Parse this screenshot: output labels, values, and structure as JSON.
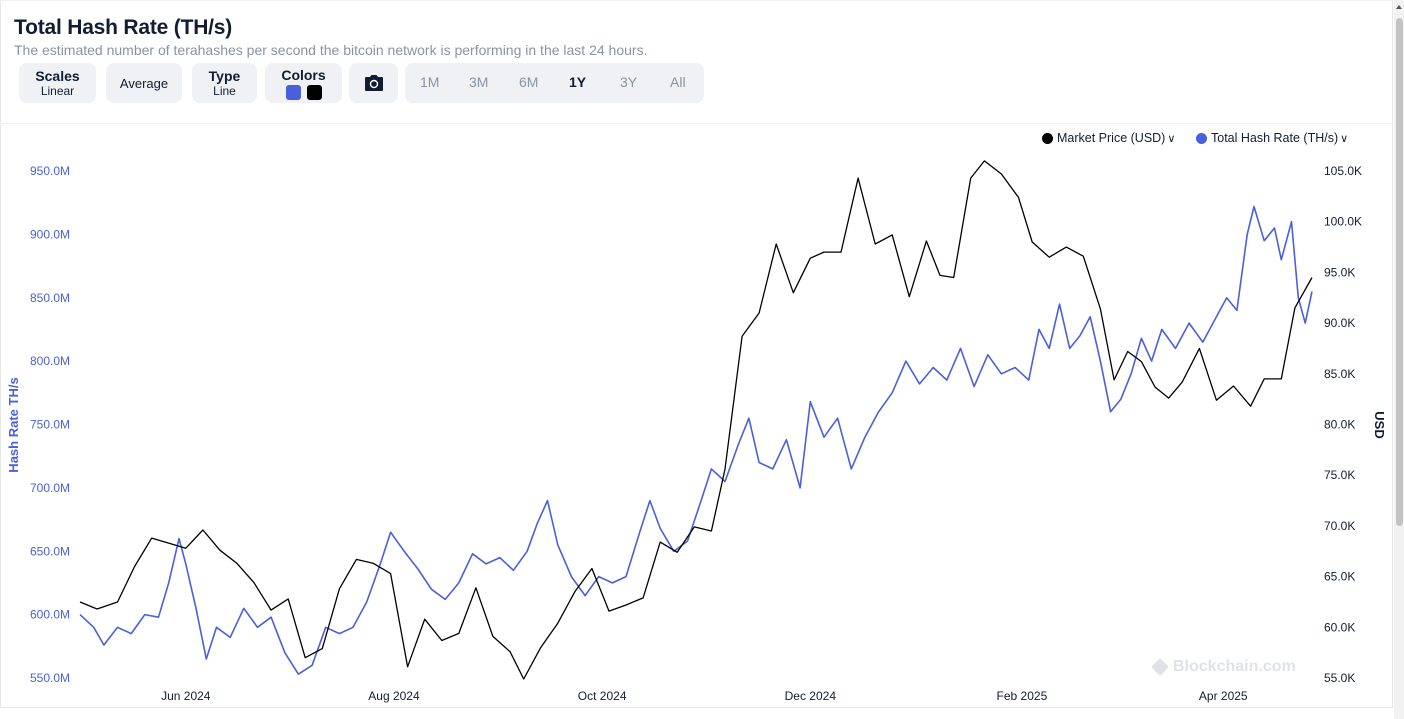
{
  "header": {
    "title": "Total Hash Rate (TH/s)",
    "subtitle": "The estimated number of terahashes per second the bitcoin network is performing in the last 24 hours."
  },
  "toolbar": {
    "scales": {
      "label": "Scales",
      "value": "Linear"
    },
    "average": {
      "label": "Average"
    },
    "type": {
      "label": "Type",
      "value": "Line"
    },
    "colors": {
      "label": "Colors",
      "swatch1": "#4a5fdc",
      "swatch2": "#000000"
    },
    "camera_icon": "camera-icon",
    "ranges": [
      "1M",
      "3M",
      "6M",
      "1Y",
      "3Y",
      "All"
    ],
    "active_range": "1Y"
  },
  "legend": {
    "market_price": {
      "label": "Market Price (USD)",
      "color": "#000000"
    },
    "hash_rate": {
      "label": "Total Hash Rate (TH/s)",
      "color": "#4a5fdc"
    }
  },
  "watermark": "Blockchain.com",
  "chart_data": {
    "type": "line",
    "x_range": [
      "2024-05-01",
      "2025-04-27"
    ],
    "x_ticks": [
      {
        "label": "Jun 2024",
        "date": "2024-06-01"
      },
      {
        "label": "Aug 2024",
        "date": "2024-08-01"
      },
      {
        "label": "Oct 2024",
        "date": "2024-10-01"
      },
      {
        "label": "Dec 2024",
        "date": "2024-12-01"
      },
      {
        "label": "Feb 2025",
        "date": "2025-02-01"
      },
      {
        "label": "Apr 2025",
        "date": "2025-04-01"
      }
    ],
    "y_left": {
      "label": "Hash Rate TH/s",
      "range": [
        550000000,
        950000000
      ],
      "ticks": [
        "550.0M",
        "600.0M",
        "650.0M",
        "700.0M",
        "750.0M",
        "800.0M",
        "850.0M",
        "900.0M",
        "950.0M"
      ]
    },
    "y_right": {
      "label": "USD",
      "range": [
        55000,
        105000
      ],
      "ticks": [
        "55.0K",
        "60.0K",
        "65.0K",
        "70.0K",
        "75.0K",
        "80.0K",
        "85.0K",
        "90.0K",
        "95.0K",
        "100.0K",
        "105.0K"
      ]
    },
    "series": [
      {
        "name": "Total Hash Rate (TH/s)",
        "axis": "left",
        "color": "#4a5fdc",
        "points": [
          [
            "2024-05-01",
            600000000
          ],
          [
            "2024-05-05",
            590000000
          ],
          [
            "2024-05-08",
            576000000
          ],
          [
            "2024-05-12",
            590000000
          ],
          [
            "2024-05-16",
            585000000
          ],
          [
            "2024-05-20",
            600000000
          ],
          [
            "2024-05-24",
            598000000
          ],
          [
            "2024-05-27",
            625000000
          ],
          [
            "2024-05-30",
            660000000
          ],
          [
            "2024-06-01",
            640000000
          ],
          [
            "2024-06-04",
            605000000
          ],
          [
            "2024-06-07",
            565000000
          ],
          [
            "2024-06-10",
            590000000
          ],
          [
            "2024-06-14",
            582000000
          ],
          [
            "2024-06-18",
            605000000
          ],
          [
            "2024-06-22",
            590000000
          ],
          [
            "2024-06-26",
            598000000
          ],
          [
            "2024-06-30",
            570000000
          ],
          [
            "2024-07-04",
            553000000
          ],
          [
            "2024-07-08",
            560000000
          ],
          [
            "2024-07-12",
            590000000
          ],
          [
            "2024-07-16",
            585000000
          ],
          [
            "2024-07-20",
            590000000
          ],
          [
            "2024-07-24",
            610000000
          ],
          [
            "2024-07-28",
            640000000
          ],
          [
            "2024-07-31",
            665000000
          ],
          [
            "2024-08-04",
            650000000
          ],
          [
            "2024-08-08",
            636000000
          ],
          [
            "2024-08-12",
            620000000
          ],
          [
            "2024-08-16",
            612000000
          ],
          [
            "2024-08-20",
            625000000
          ],
          [
            "2024-08-24",
            648000000
          ],
          [
            "2024-08-28",
            640000000
          ],
          [
            "2024-09-01",
            645000000
          ],
          [
            "2024-09-05",
            635000000
          ],
          [
            "2024-09-09",
            650000000
          ],
          [
            "2024-09-12",
            672000000
          ],
          [
            "2024-09-15",
            690000000
          ],
          [
            "2024-09-18",
            655000000
          ],
          [
            "2024-09-22",
            630000000
          ],
          [
            "2024-09-26",
            615000000
          ],
          [
            "2024-09-30",
            630000000
          ],
          [
            "2024-10-04",
            625000000
          ],
          [
            "2024-10-08",
            630000000
          ],
          [
            "2024-10-12",
            665000000
          ],
          [
            "2024-10-15",
            690000000
          ],
          [
            "2024-10-18",
            668000000
          ],
          [
            "2024-10-22",
            650000000
          ],
          [
            "2024-10-26",
            658000000
          ],
          [
            "2024-10-30",
            690000000
          ],
          [
            "2024-11-02",
            715000000
          ],
          [
            "2024-11-06",
            705000000
          ],
          [
            "2024-11-10",
            735000000
          ],
          [
            "2024-11-13",
            755000000
          ],
          [
            "2024-11-16",
            720000000
          ],
          [
            "2024-11-20",
            715000000
          ],
          [
            "2024-11-24",
            738000000
          ],
          [
            "2024-11-28",
            700000000
          ],
          [
            "2024-12-01",
            768000000
          ],
          [
            "2024-12-05",
            740000000
          ],
          [
            "2024-12-09",
            755000000
          ],
          [
            "2024-12-13",
            715000000
          ],
          [
            "2024-12-17",
            740000000
          ],
          [
            "2024-12-21",
            760000000
          ],
          [
            "2024-12-25",
            775000000
          ],
          [
            "2024-12-29",
            800000000
          ],
          [
            "2025-01-02",
            782000000
          ],
          [
            "2025-01-06",
            795000000
          ],
          [
            "2025-01-10",
            785000000
          ],
          [
            "2025-01-14",
            810000000
          ],
          [
            "2025-01-18",
            780000000
          ],
          [
            "2025-01-22",
            805000000
          ],
          [
            "2025-01-26",
            790000000
          ],
          [
            "2025-01-30",
            795000000
          ],
          [
            "2025-02-03",
            785000000
          ],
          [
            "2025-02-06",
            825000000
          ],
          [
            "2025-02-09",
            810000000
          ],
          [
            "2025-02-12",
            845000000
          ],
          [
            "2025-02-15",
            810000000
          ],
          [
            "2025-02-18",
            820000000
          ],
          [
            "2025-02-21",
            835000000
          ],
          [
            "2025-02-24",
            800000000
          ],
          [
            "2025-02-27",
            760000000
          ],
          [
            "2025-03-02",
            770000000
          ],
          [
            "2025-03-05",
            790000000
          ],
          [
            "2025-03-08",
            818000000
          ],
          [
            "2025-03-11",
            800000000
          ],
          [
            "2025-03-14",
            825000000
          ],
          [
            "2025-03-18",
            810000000
          ],
          [
            "2025-03-22",
            830000000
          ],
          [
            "2025-03-26",
            815000000
          ],
          [
            "2025-03-30",
            835000000
          ],
          [
            "2025-04-02",
            850000000
          ],
          [
            "2025-04-05",
            840000000
          ],
          [
            "2025-04-08",
            900000000
          ],
          [
            "2025-04-10",
            922000000
          ],
          [
            "2025-04-13",
            895000000
          ],
          [
            "2025-04-16",
            905000000
          ],
          [
            "2025-04-18",
            880000000
          ],
          [
            "2025-04-21",
            910000000
          ],
          [
            "2025-04-23",
            850000000
          ],
          [
            "2025-04-25",
            830000000
          ],
          [
            "2025-04-27",
            855000000
          ]
        ]
      },
      {
        "name": "Market Price (USD)",
        "axis": "right",
        "color": "#000000",
        "points": [
          [
            "2024-05-01",
            62500
          ],
          [
            "2024-05-06",
            61800
          ],
          [
            "2024-05-12",
            62500
          ],
          [
            "2024-05-17",
            66000
          ],
          [
            "2024-05-22",
            68800
          ],
          [
            "2024-05-27",
            68300
          ],
          [
            "2024-06-01",
            67800
          ],
          [
            "2024-06-06",
            69600
          ],
          [
            "2024-06-11",
            67600
          ],
          [
            "2024-06-16",
            66300
          ],
          [
            "2024-06-21",
            64400
          ],
          [
            "2024-06-26",
            61700
          ],
          [
            "2024-07-01",
            62800
          ],
          [
            "2024-07-06",
            57000
          ],
          [
            "2024-07-11",
            57900
          ],
          [
            "2024-07-16",
            63800
          ],
          [
            "2024-07-21",
            66700
          ],
          [
            "2024-07-26",
            66300
          ],
          [
            "2024-07-31",
            65300
          ],
          [
            "2024-08-05",
            56100
          ],
          [
            "2024-08-10",
            60800
          ],
          [
            "2024-08-15",
            58700
          ],
          [
            "2024-08-20",
            59400
          ],
          [
            "2024-08-25",
            63900
          ],
          [
            "2024-08-30",
            59100
          ],
          [
            "2024-09-04",
            57600
          ],
          [
            "2024-09-08",
            54900
          ],
          [
            "2024-09-13",
            58000
          ],
          [
            "2024-09-18",
            60400
          ],
          [
            "2024-09-23",
            63500
          ],
          [
            "2024-09-28",
            65800
          ],
          [
            "2024-10-03",
            61600
          ],
          [
            "2024-10-08",
            62200
          ],
          [
            "2024-10-13",
            62900
          ],
          [
            "2024-10-18",
            68400
          ],
          [
            "2024-10-23",
            67400
          ],
          [
            "2024-10-28",
            69900
          ],
          [
            "2024-11-02",
            69500
          ],
          [
            "2024-11-06",
            75600
          ],
          [
            "2024-11-11",
            88700
          ],
          [
            "2024-11-16",
            91000
          ],
          [
            "2024-11-21",
            97800
          ],
          [
            "2024-11-26",
            93000
          ],
          [
            "2024-12-01",
            96400
          ],
          [
            "2024-12-05",
            97000
          ],
          [
            "2024-12-10",
            97000
          ],
          [
            "2024-12-15",
            104300
          ],
          [
            "2024-12-20",
            97800
          ],
          [
            "2024-12-25",
            98700
          ],
          [
            "2024-12-30",
            92600
          ],
          [
            "2025-01-04",
            98100
          ],
          [
            "2025-01-08",
            94700
          ],
          [
            "2025-01-12",
            94500
          ],
          [
            "2025-01-17",
            104300
          ],
          [
            "2025-01-21",
            106000
          ],
          [
            "2025-01-26",
            104700
          ],
          [
            "2025-01-31",
            102400
          ],
          [
            "2025-02-04",
            98000
          ],
          [
            "2025-02-09",
            96500
          ],
          [
            "2025-02-14",
            97500
          ],
          [
            "2025-02-19",
            96600
          ],
          [
            "2025-02-24",
            91400
          ],
          [
            "2025-02-28",
            84400
          ],
          [
            "2025-03-04",
            87200
          ],
          [
            "2025-03-08",
            86200
          ],
          [
            "2025-03-12",
            83700
          ],
          [
            "2025-03-16",
            82600
          ],
          [
            "2025-03-20",
            84200
          ],
          [
            "2025-03-25",
            87500
          ],
          [
            "2025-03-30",
            82400
          ],
          [
            "2025-04-04",
            83800
          ],
          [
            "2025-04-09",
            81800
          ],
          [
            "2025-04-13",
            84500
          ],
          [
            "2025-04-18",
            84500
          ],
          [
            "2025-04-22",
            91500
          ],
          [
            "2025-04-27",
            94500
          ]
        ]
      }
    ],
    "grid": false,
    "legend_position": "top-right"
  }
}
